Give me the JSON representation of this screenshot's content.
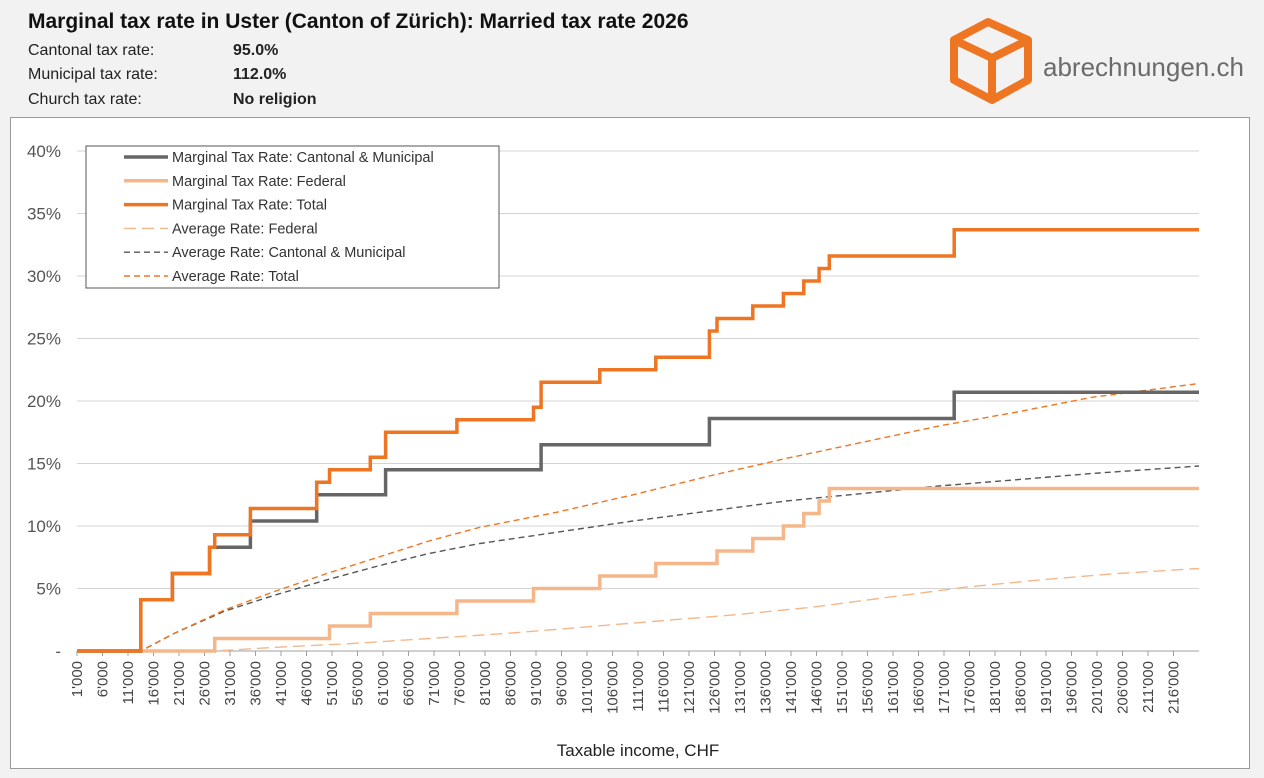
{
  "header": {
    "title": "Marginal tax rate in Uster (Canton of Zürich): Married tax rate 2026",
    "rates": [
      {
        "label": "Cantonal tax rate:",
        "value": "95.0%"
      },
      {
        "label": "Municipal tax rate:",
        "value": "112.0%"
      },
      {
        "label": "Church tax rate:",
        "value": "No religion"
      }
    ]
  },
  "logo": {
    "text": "abrechnungen.ch",
    "icon": "orange-cube-icon",
    "color": "#ee7623"
  },
  "chart_data": {
    "type": "line",
    "title": "Marginal tax rate in Uster (Canton of Zürich): Married tax rate 2026",
    "xlabel": "Taxable income, CHF",
    "ylabel": "",
    "xlim": [
      1000,
      221000
    ],
    "ylim": [
      0,
      40
    ],
    "x_tick_labels": [
      "1'000",
      "6'000",
      "11'000",
      "16'000",
      "21'000",
      "26'000",
      "31'000",
      "36'000",
      "41'000",
      "46'000",
      "51'000",
      "56'000",
      "61'000",
      "66'000",
      "71'000",
      "76'000",
      "81'000",
      "86'000",
      "91'000",
      "96'000",
      "101'000",
      "106'000",
      "111'000",
      "116'000",
      "121'000",
      "126'000",
      "131'000",
      "136'000",
      "141'000",
      "146'000",
      "151'000",
      "156'000",
      "161'000",
      "166'000",
      "171'000",
      "176'000",
      "181'000",
      "186'000",
      "191'000",
      "196'000",
      "201'000",
      "206'000",
      "211'000",
      "216'000"
    ],
    "y_tick_labels": [
      "-",
      "5%",
      "10%",
      "15%",
      "20%",
      "25%",
      "30%",
      "35%",
      "40%"
    ],
    "grid": "horizontal",
    "legend_position": "top-left",
    "series": [
      {
        "name": "Marginal Tax Rate: Cantonal & Municipal",
        "style": "solid",
        "color": "#666666",
        "steps": [
          [
            1000,
            0
          ],
          [
            13500,
            0
          ],
          [
            13500,
            4.1
          ],
          [
            19700,
            4.1
          ],
          [
            19700,
            6.2
          ],
          [
            27000,
            6.2
          ],
          [
            27000,
            8.3
          ],
          [
            35000,
            8.3
          ],
          [
            35000,
            10.4
          ],
          [
            48000,
            10.4
          ],
          [
            48000,
            12.5
          ],
          [
            61500,
            12.5
          ],
          [
            61500,
            14.5
          ],
          [
            92000,
            14.5
          ],
          [
            92000,
            16.5
          ],
          [
            125000,
            16.5
          ],
          [
            125000,
            18.6
          ],
          [
            173000,
            18.6
          ],
          [
            173000,
            20.7
          ],
          [
            221000,
            20.7
          ]
        ]
      },
      {
        "name": "Marginal Tax Rate: Federal",
        "style": "solid",
        "color": "#f5b78a",
        "steps": [
          [
            1000,
            0
          ],
          [
            28000,
            0
          ],
          [
            28000,
            1.0
          ],
          [
            50500,
            1.0
          ],
          [
            50500,
            2.0
          ],
          [
            58500,
            2.0
          ],
          [
            58500,
            3.0
          ],
          [
            75500,
            3.0
          ],
          [
            75500,
            4.0
          ],
          [
            90500,
            4.0
          ],
          [
            90500,
            5.0
          ],
          [
            103500,
            5.0
          ],
          [
            103500,
            6.0
          ],
          [
            114500,
            6.0
          ],
          [
            114500,
            7.0
          ],
          [
            126500,
            7.0
          ],
          [
            126500,
            8.0
          ],
          [
            133500,
            8.0
          ],
          [
            133500,
            9.0
          ],
          [
            139500,
            9.0
          ],
          [
            139500,
            10.0
          ],
          [
            143500,
            10.0
          ],
          [
            143500,
            11.0
          ],
          [
            146500,
            11.0
          ],
          [
            146500,
            12.0
          ],
          [
            148500,
            12.0
          ],
          [
            148500,
            13.0
          ],
          [
            221000,
            13.0
          ]
        ]
      },
      {
        "name": "Marginal Tax Rate: Total",
        "style": "solid",
        "color": "#ee7623",
        "steps": [
          [
            1000,
            0
          ],
          [
            13500,
            0
          ],
          [
            13500,
            4.1
          ],
          [
            19700,
            4.1
          ],
          [
            19700,
            6.2
          ],
          [
            27000,
            6.2
          ],
          [
            27000,
            8.3
          ],
          [
            28000,
            8.3
          ],
          [
            28000,
            9.3
          ],
          [
            35000,
            9.3
          ],
          [
            35000,
            11.4
          ],
          [
            48000,
            11.4
          ],
          [
            48000,
            13.5
          ],
          [
            50500,
            13.5
          ],
          [
            50500,
            14.5
          ],
          [
            58500,
            14.5
          ],
          [
            58500,
            15.5
          ],
          [
            61500,
            15.5
          ],
          [
            61500,
            17.5
          ],
          [
            75500,
            17.5
          ],
          [
            75500,
            18.5
          ],
          [
            90500,
            18.5
          ],
          [
            90500,
            19.5
          ],
          [
            92000,
            19.5
          ],
          [
            92000,
            21.5
          ],
          [
            103500,
            21.5
          ],
          [
            103500,
            22.5
          ],
          [
            114500,
            22.5
          ],
          [
            114500,
            23.5
          ],
          [
            125000,
            23.5
          ],
          [
            125000,
            25.6
          ],
          [
            126500,
            25.6
          ],
          [
            126500,
            26.6
          ],
          [
            133500,
            26.6
          ],
          [
            133500,
            27.6
          ],
          [
            139500,
            27.6
          ],
          [
            139500,
            28.6
          ],
          [
            143500,
            28.6
          ],
          [
            143500,
            29.6
          ],
          [
            146500,
            29.6
          ],
          [
            146500,
            30.6
          ],
          [
            148500,
            30.6
          ],
          [
            148500,
            31.6
          ],
          [
            173000,
            31.6
          ],
          [
            173000,
            33.7
          ],
          [
            221000,
            33.7
          ]
        ]
      },
      {
        "name": "Average Rate: Federal",
        "style": "long-dash",
        "color": "#f5b78a",
        "points": [
          [
            1000,
            0
          ],
          [
            28000,
            0
          ],
          [
            40000,
            0.3
          ],
          [
            55000,
            0.6
          ],
          [
            70000,
            1.0
          ],
          [
            85000,
            1.4
          ],
          [
            100000,
            1.9
          ],
          [
            115000,
            2.4
          ],
          [
            130000,
            2.9
          ],
          [
            145000,
            3.5
          ],
          [
            160000,
            4.3
          ],
          [
            175000,
            5.1
          ],
          [
            190000,
            5.7
          ],
          [
            205000,
            6.2
          ],
          [
            221000,
            6.6
          ]
        ]
      },
      {
        "name": "Average Rate: Cantonal & Municipal",
        "style": "dash",
        "color": "#555555",
        "points": [
          [
            1000,
            0
          ],
          [
            13500,
            0
          ],
          [
            20000,
            1.4
          ],
          [
            30000,
            3.2
          ],
          [
            40000,
            4.5
          ],
          [
            50000,
            5.7
          ],
          [
            60000,
            6.8
          ],
          [
            70000,
            7.8
          ],
          [
            80000,
            8.6
          ],
          [
            95000,
            9.5
          ],
          [
            110000,
            10.4
          ],
          [
            125000,
            11.2
          ],
          [
            140000,
            12.0
          ],
          [
            155000,
            12.6
          ],
          [
            170000,
            13.2
          ],
          [
            185000,
            13.7
          ],
          [
            200000,
            14.2
          ],
          [
            221000,
            14.8
          ]
        ]
      },
      {
        "name": "Average Rate: Total",
        "style": "dash",
        "color": "#ee7623",
        "points": [
          [
            1000,
            0
          ],
          [
            13500,
            0
          ],
          [
            20000,
            1.4
          ],
          [
            30000,
            3.3
          ],
          [
            40000,
            4.8
          ],
          [
            50000,
            6.2
          ],
          [
            60000,
            7.5
          ],
          [
            70000,
            8.8
          ],
          [
            80000,
            9.9
          ],
          [
            95000,
            11.1
          ],
          [
            110000,
            12.5
          ],
          [
            125000,
            14.0
          ],
          [
            140000,
            15.4
          ],
          [
            155000,
            16.7
          ],
          [
            170000,
            18.0
          ],
          [
            185000,
            19.1
          ],
          [
            200000,
            20.3
          ],
          [
            221000,
            21.4
          ]
        ]
      }
    ]
  }
}
